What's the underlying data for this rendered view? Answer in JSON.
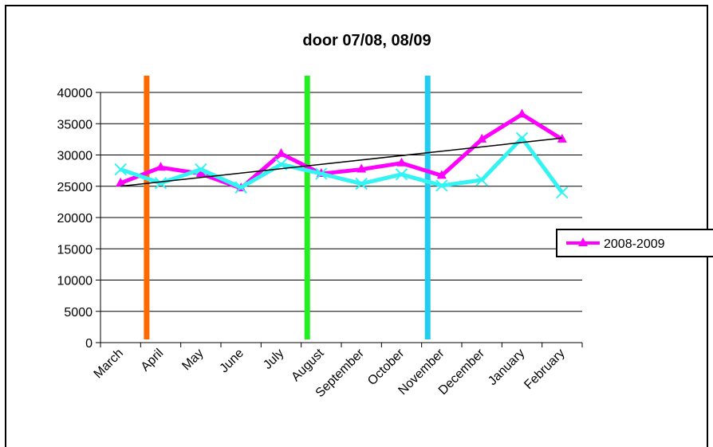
{
  "chart_data": {
    "type": "line",
    "title": "door 07/08, 08/09",
    "xlabel": "",
    "ylabel": "",
    "categories": [
      "March",
      "April",
      "May",
      "June",
      "July",
      "August",
      "September",
      "October",
      "November",
      "December",
      "January",
      "February"
    ],
    "ylim": [
      0,
      40000
    ],
    "yticks": [
      0,
      5000,
      10000,
      15000,
      20000,
      25000,
      30000,
      35000,
      40000
    ],
    "grid": true,
    "legend_position": "right",
    "series": [
      {
        "name": "2008-2009",
        "color": "#ff00ff",
        "marker": "triangle",
        "values": [
          25500,
          28000,
          27000,
          24700,
          30200,
          27000,
          27700,
          28700,
          26700,
          32500,
          36500,
          32500
        ]
      },
      {
        "name": "",
        "color": "#33f3f3",
        "marker": "x",
        "values": [
          27700,
          25500,
          27700,
          24800,
          28500,
          27000,
          25400,
          26900,
          25100,
          26000,
          32700,
          24000
        ]
      }
    ],
    "trendline": {
      "color": "#000000",
      "from": 25000,
      "to": 32700
    },
    "vertical_markers": [
      {
        "color": "#ff6a00",
        "after_category": "March"
      },
      {
        "color": "#22ee22",
        "after_category": "July"
      },
      {
        "color": "#22ccee",
        "after_category": "October"
      }
    ]
  }
}
